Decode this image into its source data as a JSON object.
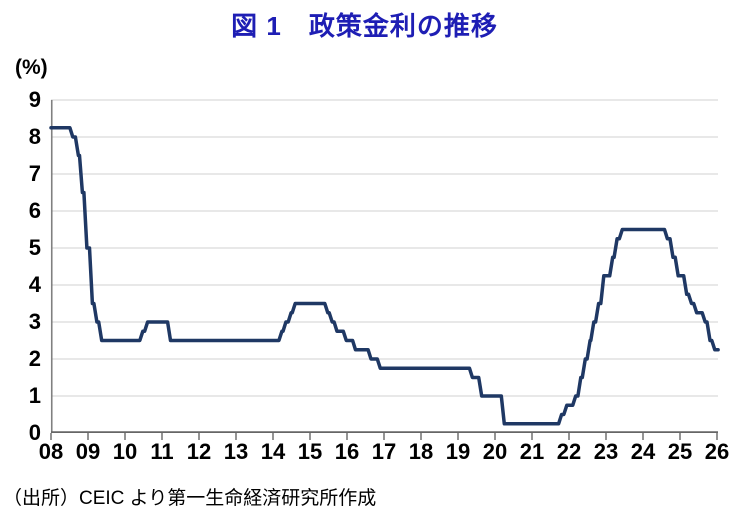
{
  "title": {
    "text": "図 1　政策金利の推移",
    "color": "#1E1EB4"
  },
  "source_note": "（出所）CEIC より第一生命経済研究所作成",
  "chart_data": {
    "type": "line",
    "title": "図 1　政策金利の推移",
    "ylabel": "(%)",
    "xlabel": "",
    "ylim": [
      0,
      9
    ],
    "xlim": [
      2008,
      2026.03
    ],
    "grid": "horizontal-only",
    "legend": "none",
    "y_ticks": [
      "0",
      "1",
      "2",
      "3",
      "4",
      "5",
      "6",
      "7",
      "8",
      "9"
    ],
    "x_ticks": [
      "08",
      "09",
      "10",
      "11",
      "12",
      "13",
      "14",
      "15",
      "16",
      "17",
      "18",
      "19",
      "20",
      "21",
      "22",
      "23",
      "24",
      "25",
      "26"
    ],
    "x_tick_years": [
      2008,
      2009,
      2010,
      2011,
      2012,
      2013,
      2014,
      2015,
      2016,
      2017,
      2018,
      2019,
      2020,
      2021,
      2022,
      2023,
      2024,
      2025,
      2026
    ],
    "colors": {
      "line": "#1F3864",
      "gridline": "#D9D9D9",
      "axis": "#808080",
      "tick": "#666666",
      "label": "#000000",
      "background": "#FFFFFF"
    },
    "line_width": 3.5,
    "series": [
      {
        "name": "政策金利",
        "unit": "%",
        "step_changes": [
          [
            2008.0,
            8.25
          ],
          [
            2008.55,
            8.0
          ],
          [
            2008.7,
            7.5
          ],
          [
            2008.81,
            6.5
          ],
          [
            2008.93,
            5.0
          ],
          [
            2009.08,
            3.5
          ],
          [
            2009.2,
            3.0
          ],
          [
            2009.33,
            2.5
          ],
          [
            2010.44,
            2.75
          ],
          [
            2010.57,
            3.0
          ],
          [
            2011.19,
            2.5
          ],
          [
            2014.2,
            2.75
          ],
          [
            2014.31,
            3.0
          ],
          [
            2014.45,
            3.25
          ],
          [
            2014.56,
            3.5
          ],
          [
            2015.44,
            3.25
          ],
          [
            2015.56,
            3.0
          ],
          [
            2015.69,
            2.75
          ],
          [
            2015.94,
            2.5
          ],
          [
            2016.19,
            2.25
          ],
          [
            2016.61,
            2.0
          ],
          [
            2016.86,
            1.75
          ],
          [
            2019.35,
            1.5
          ],
          [
            2019.6,
            1.0
          ],
          [
            2020.21,
            0.25
          ],
          [
            2021.76,
            0.5
          ],
          [
            2021.9,
            0.75
          ],
          [
            2022.14,
            1.0
          ],
          [
            2022.28,
            1.5
          ],
          [
            2022.4,
            2.0
          ],
          [
            2022.53,
            2.5
          ],
          [
            2022.63,
            3.0
          ],
          [
            2022.76,
            3.5
          ],
          [
            2022.9,
            4.25
          ],
          [
            2023.14,
            4.75
          ],
          [
            2023.26,
            5.25
          ],
          [
            2023.4,
            5.5
          ],
          [
            2024.62,
            5.25
          ],
          [
            2024.77,
            4.75
          ],
          [
            2024.91,
            4.25
          ],
          [
            2025.14,
            3.75
          ],
          [
            2025.27,
            3.5
          ],
          [
            2025.41,
            3.25
          ],
          [
            2025.64,
            3.0
          ],
          [
            2025.77,
            2.5
          ],
          [
            2025.9,
            2.25
          ]
        ],
        "end_x": 2026.03
      }
    ]
  }
}
